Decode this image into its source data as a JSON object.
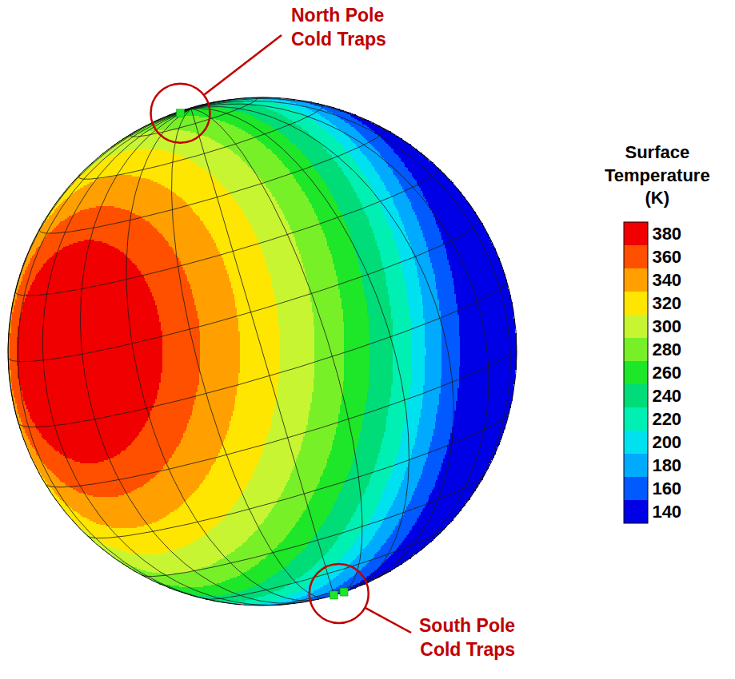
{
  "chart_data": {
    "type": "sphere_temperature_map",
    "tick_labels": false,
    "grid": true,
    "colorbar": {
      "title": "Surface Temperature (K)",
      "range": [
        130,
        390
      ],
      "ticks": [
        140,
        160,
        180,
        200,
        220,
        240,
        260,
        280,
        300,
        320,
        340,
        360,
        380
      ],
      "colors": [
        "#0000e6",
        "#005aff",
        "#00aaff",
        "#00e1f0",
        "#00f0b4",
        "#00dc78",
        "#1ee628",
        "#78f028",
        "#c8f532",
        "#ffe600",
        "#ffa000",
        "#ff5000",
        "#f00000"
      ]
    },
    "subsolar_point": {
      "lat": 16,
      "lon": -49
    },
    "zones": [
      {
        "temperature": 380,
        "max_angle_from_subsolar_deg": 26
      },
      {
        "temperature": 360,
        "max_angle_from_subsolar_deg": 35
      },
      {
        "temperature": 340,
        "max_angle_from_subsolar_deg": 44
      },
      {
        "temperature": 320,
        "max_angle_from_subsolar_deg": 53
      },
      {
        "temperature": 300,
        "max_angle_from_subsolar_deg": 61
      },
      {
        "temperature": 280,
        "max_angle_from_subsolar_deg": 68
      },
      {
        "temperature": 260,
        "max_angle_from_subsolar_deg": 74
      },
      {
        "temperature": 240,
        "max_angle_from_subsolar_deg": 80
      },
      {
        "temperature": 220,
        "max_angle_from_subsolar_deg": 85
      },
      {
        "temperature": 200,
        "max_angle_from_subsolar_deg": 89
      },
      {
        "temperature": 180,
        "max_angle_from_subsolar_deg": 94
      },
      {
        "temperature": 160,
        "max_angle_from_subsolar_deg": 100
      },
      {
        "temperature": 140,
        "max_angle_from_subsolar_deg": 180
      }
    ],
    "cold_traps": [
      {
        "label": "North Pole Cold Traps",
        "temperature": 260,
        "points": [
          {
            "lat": 87,
            "lon": -60
          }
        ]
      },
      {
        "label": "South Pole Cold Traps",
        "temperature": 260,
        "points": [
          {
            "lat": -82,
            "lon": 0
          },
          {
            "lat": -83,
            "lon": 20
          }
        ]
      }
    ]
  }
}
